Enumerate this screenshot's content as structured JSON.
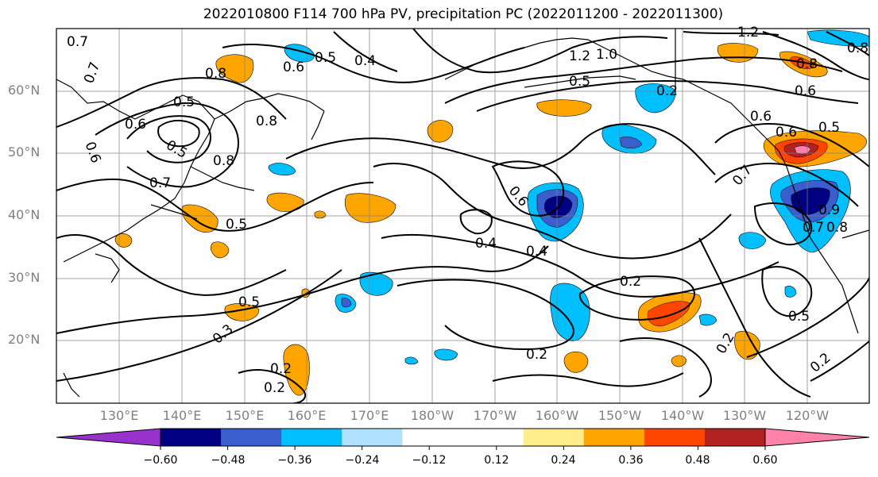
{
  "title": "2022010800 F114 700 hPa PV, precipitation PC (2022011200 - 2022011300)",
  "lat_labels": [
    "60°N",
    "50°N",
    "40°N",
    "30°N",
    "20°N"
  ],
  "lon_labels": [
    "130°E",
    "140°E",
    "150°E",
    "160°E",
    "170°E",
    "180°W",
    "170°W",
    "160°W",
    "150°W",
    "140°W",
    "130°W",
    "120°W"
  ],
  "colorbar": {
    "colors": [
      "#9932cc",
      "#000080",
      "#3a5fcd",
      "#00bfff",
      "#b0e2ff",
      "#ffffff",
      "#ffffff",
      "#ffec8b",
      "#ffa500",
      "#ff4500",
      "#b22222",
      "#ff82ab"
    ],
    "tick_labels": [
      "−0.60",
      "−0.48",
      "−0.36",
      "−0.24",
      "−0.12",
      "0.12",
      "0.24",
      "0.36",
      "0.48",
      "0.60"
    ]
  },
  "contour_labels": [
    "0.7",
    "0.7",
    "0.8",
    "0.5",
    "0.6",
    "0.5",
    "0.8",
    "0.8",
    "0.7",
    "0.6",
    "0.6",
    "0.5",
    "0.4",
    "1.2",
    "1.0",
    "0.5",
    "0.6",
    "0.5",
    "0.6",
    "0.7",
    "0.6",
    "0.7",
    "0.8",
    "0.9",
    "0.6",
    "0.5",
    "0.4",
    "0.4",
    "0.2",
    "0.2",
    "0.2",
    "0.2",
    "0.5",
    "0.3",
    "0.2",
    "0.2",
    "0.5",
    "0.2",
    "0.8",
    "1.2",
    "0.8"
  ]
}
